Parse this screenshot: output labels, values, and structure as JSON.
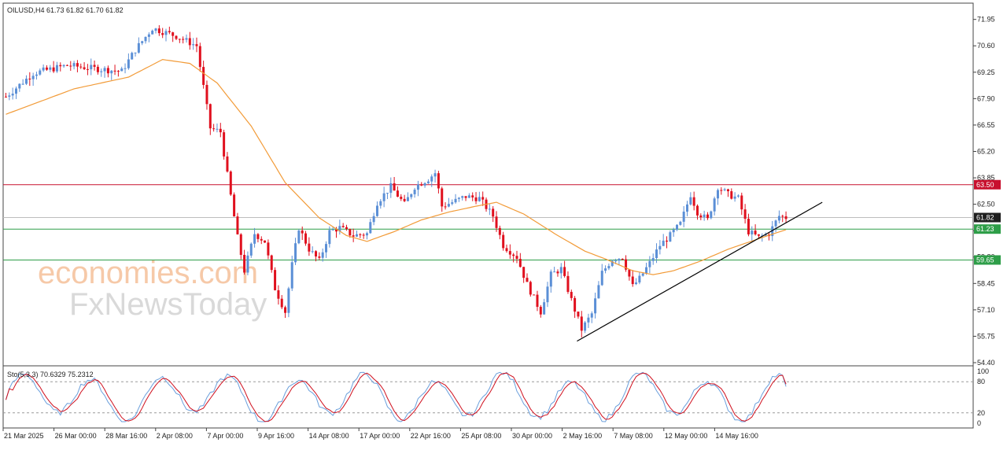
{
  "header": {
    "symbol_info": "OILUSD,H4  61.73 61.82 61.70 61.82"
  },
  "watermark": {
    "brand_line1": "economies.com",
    "brand_line2": "FxNewsToday"
  },
  "colors": {
    "bull": "#5b8fd6",
    "bear": "#e0101e",
    "ma": "#f29b38",
    "resistance": "#c8102e",
    "support": "#2e9e48",
    "current": "#1f1f1f",
    "trendline": "#000000",
    "stoch_main": "#6a9fdc",
    "stoch_signal": "#d0101e"
  },
  "chart_data": [
    {
      "type": "candlestick",
      "symbol": "OILUSD",
      "timeframe": "H4",
      "ylim": [
        54.4,
        72.5
      ],
      "y_ticks": [
        "71.95",
        "70.60",
        "69.25",
        "67.90",
        "66.55",
        "65.20",
        "63.85",
        "62.50",
        "61.15",
        "59.80",
        "58.45",
        "57.10",
        "55.75",
        "54.40"
      ],
      "x_ticks": [
        "21 Mar 2025",
        "26 Mar 00:00",
        "28 Mar 16:00",
        "2 Apr 08:00",
        "7 Apr 00:00",
        "9 Apr 16:00",
        "14 Apr 08:00",
        "17 Apr 00:00",
        "22 Apr 16:00",
        "25 Apr 08:00",
        "30 Apr 00:00",
        "2 May 16:00",
        "7 May 08:00",
        "12 May 00:00",
        "14 May 16:00"
      ],
      "anchors": [
        [
          0,
          68.0
        ],
        [
          8,
          69.2
        ],
        [
          18,
          69.6
        ],
        [
          28,
          69.4
        ],
        [
          34,
          69.3
        ],
        [
          38,
          70.4
        ],
        [
          43,
          71.5
        ],
        [
          50,
          71.1
        ],
        [
          56,
          70.6
        ],
        [
          60,
          66.4
        ],
        [
          63,
          66.2
        ],
        [
          65,
          64.0
        ],
        [
          68,
          60.8
        ],
        [
          70,
          59.1
        ],
        [
          73,
          61.0
        ],
        [
          76,
          60.6
        ],
        [
          79,
          58.2
        ],
        [
          82,
          57.0
        ],
        [
          84,
          59.4
        ],
        [
          86,
          61.3
        ],
        [
          89,
          60.2
        ],
        [
          92,
          59.6
        ],
        [
          95,
          61.1
        ],
        [
          98,
          61.3
        ],
        [
          102,
          60.9
        ],
        [
          106,
          61.0
        ],
        [
          109,
          62.6
        ],
        [
          113,
          63.4
        ],
        [
          117,
          62.5
        ],
        [
          120,
          63.4
        ],
        [
          124,
          63.8
        ],
        [
          126,
          64.1
        ],
        [
          128,
          62.4
        ],
        [
          131,
          62.6
        ],
        [
          135,
          62.9
        ],
        [
          139,
          62.8
        ],
        [
          143,
          61.9
        ],
        [
          146,
          60.4
        ],
        [
          150,
          59.8
        ],
        [
          153,
          58.4
        ],
        [
          157,
          57.0
        ],
        [
          160,
          58.9
        ],
        [
          163,
          59.2
        ],
        [
          166,
          57.6
        ],
        [
          169,
          56.1
        ],
        [
          172,
          56.9
        ],
        [
          175,
          59.0
        ],
        [
          178,
          59.7
        ],
        [
          181,
          59.8
        ],
        [
          184,
          58.3
        ],
        [
          186,
          58.7
        ],
        [
          189,
          59.5
        ],
        [
          192,
          60.4
        ],
        [
          195,
          60.9
        ],
        [
          198,
          61.5
        ],
        [
          201,
          63.0
        ],
        [
          203,
          62.1
        ],
        [
          206,
          61.7
        ],
        [
          209,
          63.4
        ],
        [
          212,
          63.0
        ],
        [
          215,
          62.8
        ],
        [
          218,
          61.1
        ],
        [
          221,
          60.8
        ],
        [
          224,
          61.0
        ],
        [
          227,
          61.9
        ],
        [
          229,
          61.82
        ]
      ],
      "ma_anchors": [
        [
          0,
          67.1
        ],
        [
          20,
          68.4
        ],
        [
          36,
          69.0
        ],
        [
          46,
          69.9
        ],
        [
          54,
          69.7
        ],
        [
          62,
          68.7
        ],
        [
          72,
          66.5
        ],
        [
          82,
          63.6
        ],
        [
          92,
          61.8
        ],
        [
          100,
          60.9
        ],
        [
          106,
          60.6
        ],
        [
          114,
          61.1
        ],
        [
          122,
          61.7
        ],
        [
          130,
          62.1
        ],
        [
          138,
          62.4
        ],
        [
          144,
          62.6
        ],
        [
          152,
          62.0
        ],
        [
          162,
          60.9
        ],
        [
          170,
          60.1
        ],
        [
          176,
          59.7
        ],
        [
          184,
          59.1
        ],
        [
          190,
          58.9
        ],
        [
          196,
          59.1
        ],
        [
          204,
          59.6
        ],
        [
          212,
          60.2
        ],
        [
          222,
          60.8
        ],
        [
          229,
          61.2
        ]
      ],
      "current_price": "61.82",
      "levels": [
        {
          "label": "63.50",
          "value": 63.5,
          "kind": "resistance"
        },
        {
          "label": "61.23",
          "value": 61.23,
          "kind": "support"
        },
        {
          "label": "59.65",
          "value": 59.65,
          "kind": "support"
        }
      ],
      "trendline": {
        "from": [
          168,
          55.5
        ],
        "to": [
          240,
          62.6
        ]
      }
    },
    {
      "type": "line",
      "indicator": "Stochastic",
      "legend": "Sto(5,3,3) 70.6329 75.2312",
      "ylim": [
        0,
        100
      ],
      "y_ticks": [
        "100",
        "80",
        "20",
        "0"
      ],
      "levels": [
        80,
        20
      ],
      "main_value": 70.6329,
      "signal_value": 75.2312
    }
  ]
}
